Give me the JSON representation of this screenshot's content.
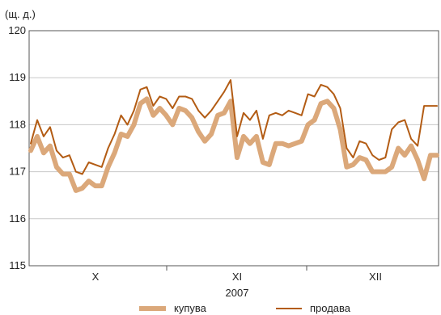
{
  "chart_data": {
    "type": "line",
    "unit_label": "(щ. д.)",
    "ylim": [
      115,
      120
    ],
    "yticks": [
      "115",
      "116",
      "117",
      "118",
      "119",
      "120"
    ],
    "month_labels": [
      "X",
      "XI",
      "XII"
    ],
    "year_label": "2007",
    "grid": "horizontal",
    "legend_position": "bottom",
    "series": [
      {
        "name": "купува",
        "color": "#dba87a",
        "values": [
          117.45,
          117.75,
          117.4,
          117.55,
          117.1,
          116.95,
          116.95,
          116.6,
          116.65,
          116.8,
          116.7,
          116.7,
          117.1,
          117.4,
          117.8,
          117.75,
          118.0,
          118.45,
          118.55,
          118.2,
          118.35,
          118.2,
          118.0,
          118.35,
          118.3,
          118.15,
          117.85,
          117.65,
          117.8,
          118.2,
          118.25,
          118.5,
          117.3,
          117.75,
          117.6,
          117.75,
          117.2,
          117.15,
          117.6,
          117.6,
          117.55,
          117.6,
          117.65,
          118.0,
          118.1,
          118.45,
          118.5,
          118.35,
          117.9,
          117.1,
          117.15,
          117.3,
          117.25,
          117.0,
          117.0,
          117.0,
          117.1,
          117.5,
          117.35,
          117.55,
          117.25,
          116.85,
          117.35,
          117.35
        ]
      },
      {
        "name": "продава",
        "color": "#b35c14",
        "values": [
          117.6,
          118.1,
          117.75,
          117.95,
          117.45,
          117.3,
          117.35,
          117.0,
          116.95,
          117.2,
          117.15,
          117.1,
          117.5,
          117.8,
          118.2,
          118.0,
          118.3,
          118.75,
          118.8,
          118.4,
          118.6,
          118.55,
          118.35,
          118.6,
          118.6,
          118.55,
          118.3,
          118.15,
          118.3,
          118.5,
          118.7,
          118.95,
          117.75,
          118.25,
          118.1,
          118.3,
          117.7,
          118.2,
          118.25,
          118.2,
          118.3,
          118.25,
          118.2,
          118.65,
          118.6,
          118.85,
          118.8,
          118.65,
          118.35,
          117.5,
          117.3,
          117.65,
          117.6,
          117.35,
          117.25,
          117.3,
          117.9,
          118.05,
          118.1,
          117.7,
          117.55,
          118.4,
          118.4,
          118.4
        ]
      }
    ]
  }
}
